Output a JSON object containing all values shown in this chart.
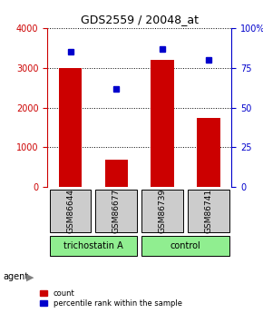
{
  "title": "GDS2559 / 20048_at",
  "samples": [
    "GSM86644",
    "GSM86677",
    "GSM86739",
    "GSM86741"
  ],
  "counts": [
    3000,
    700,
    3200,
    1750
  ],
  "percentiles": [
    85,
    62,
    87,
    80
  ],
  "groups": [
    "trichostatin A",
    "trichostatin A",
    "control",
    "control"
  ],
  "group_colors": {
    "trichostatin A": "#90EE90",
    "control": "#90EE90"
  },
  "bar_color": "#CC0000",
  "dot_color": "#0000CC",
  "left_ylim": [
    0,
    4000
  ],
  "right_ylim": [
    0,
    100
  ],
  "left_yticks": [
    0,
    1000,
    2000,
    3000,
    4000
  ],
  "right_yticks": [
    0,
    25,
    50,
    75,
    100
  ],
  "right_yticklabels": [
    "0",
    "25",
    "50",
    "75",
    "100%"
  ],
  "left_ycolor": "#CC0000",
  "right_ycolor": "#0000CC",
  "sample_box_color": "#CCCCCC",
  "group_label": "agent",
  "legend_count": "count",
  "legend_pct": "percentile rank within the sample"
}
